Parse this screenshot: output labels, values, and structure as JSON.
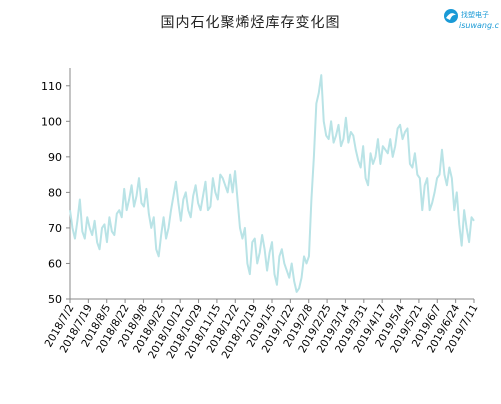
{
  "chart_data": {
    "type": "line",
    "title": "国内石化聚烯烃库存变化图",
    "xlabel": "",
    "ylabel": "",
    "ylim": [
      50,
      115
    ],
    "yticks": [
      50,
      60,
      70,
      80,
      90,
      100,
      110
    ],
    "x_tick_labels": [
      "2018/7/2",
      "2018/7/19",
      "2018/8/5",
      "2018/8/22",
      "2018/9/8",
      "2018/9/25",
      "2018/10/12",
      "2018/10/29",
      "2018/11/15",
      "2018/12/2",
      "2018/12/19",
      "2019/1/5",
      "2019/1/22",
      "2019/2/8",
      "2019/2/25",
      "2019/3/14",
      "2019/3/31",
      "2019/4/17",
      "2019/5/4",
      "2019/5/21",
      "2019/6/7",
      "2019/6/24",
      "2019/7/11"
    ],
    "grid": false,
    "legend": "none",
    "series_color": "#b9e3e6",
    "series": [
      {
        "values": [
          75,
          70,
          67,
          72,
          78,
          69,
          67,
          73,
          70,
          68,
          72,
          66,
          64,
          70,
          71,
          66,
          73,
          69,
          68,
          74,
          75,
          73,
          81,
          75,
          78,
          82,
          76,
          79,
          84,
          77,
          76,
          81,
          74,
          70,
          73,
          64,
          62,
          68,
          73,
          67,
          70,
          75,
          79,
          83,
          77,
          72,
          78,
          80,
          75,
          73,
          79,
          82,
          77,
          75,
          79,
          83,
          75,
          76,
          84,
          80,
          78,
          85,
          84,
          82,
          80,
          85,
          80,
          86,
          78,
          70,
          67,
          70,
          60,
          57,
          66,
          67,
          60,
          63,
          68,
          64,
          58,
          63,
          66,
          57,
          54,
          62,
          64,
          60,
          58,
          56,
          60,
          55,
          52,
          53,
          56,
          62,
          60,
          62,
          78,
          90,
          105,
          108,
          113,
          100,
          96,
          95,
          100,
          94,
          96,
          99,
          93,
          95,
          101,
          94,
          97,
          96,
          92,
          89,
          87,
          93,
          84,
          82,
          91,
          88,
          90,
          95,
          88,
          93,
          92,
          91,
          95,
          90,
          93,
          98,
          99,
          95,
          97,
          98,
          88,
          87,
          91,
          85,
          84,
          75,
          82,
          84,
          75,
          77,
          80,
          84,
          85,
          92,
          85,
          82,
          87,
          84,
          75,
          80,
          71,
          65,
          75,
          70,
          66,
          73,
          72
        ]
      }
    ]
  },
  "brand": {
    "name": "isuwang",
    "caption": "isuwang.c",
    "mark_text": "找塑电子"
  }
}
